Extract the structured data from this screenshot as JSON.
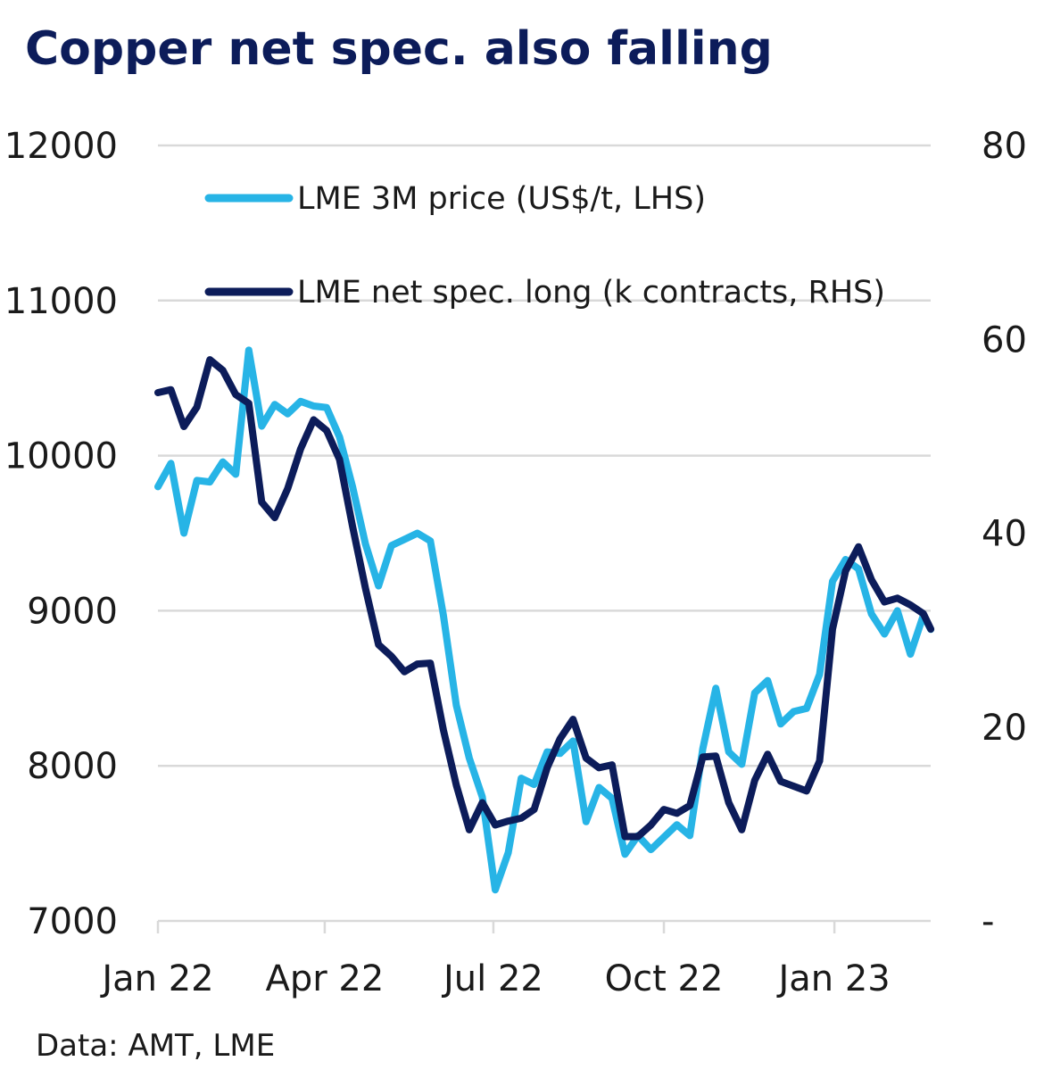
{
  "chart_data": {
    "type": "line",
    "title": "Copper net spec. also falling",
    "source": "Data: AMT, LME",
    "legend_placement": "top-left",
    "grid": true,
    "colors": {
      "title": "#0c1c5a",
      "price": "#27b4e6",
      "netspec": "#0c1c5a",
      "grid": "#d9d9d9"
    },
    "x_ticks": [
      {
        "date": "2022-01-01",
        "label": "Jan 22"
      },
      {
        "date": "2022-04-01",
        "label": "Apr 22"
      },
      {
        "date": "2022-07-01",
        "label": "Jul 22"
      },
      {
        "date": "2022-10-01",
        "label": "Oct 22"
      },
      {
        "date": "2023-01-01",
        "label": "Jan 23"
      }
    ],
    "y_left": {
      "lim": [
        7000,
        12000
      ],
      "ticks": [
        "7000",
        "8000",
        "9000",
        "10000",
        "11000",
        "12000"
      ]
    },
    "y_right": {
      "lim": [
        0,
        80
      ],
      "ticks": [
        "-",
        "20",
        "40",
        "60",
        "80"
      ]
    },
    "dates": [
      "2022-01-01",
      "2022-01-08",
      "2022-01-15",
      "2022-01-22",
      "2022-01-29",
      "2022-02-05",
      "2022-02-12",
      "2022-02-19",
      "2022-02-26",
      "2022-03-05",
      "2022-03-12",
      "2022-03-19",
      "2022-03-26",
      "2022-04-02",
      "2022-04-09",
      "2022-04-16",
      "2022-04-23",
      "2022-04-30",
      "2022-05-07",
      "2022-05-14",
      "2022-05-21",
      "2022-05-28",
      "2022-06-04",
      "2022-06-11",
      "2022-06-18",
      "2022-06-25",
      "2022-07-02",
      "2022-07-09",
      "2022-07-16",
      "2022-07-23",
      "2022-07-30",
      "2022-08-06",
      "2022-08-13",
      "2022-08-20",
      "2022-08-27",
      "2022-09-03",
      "2022-09-10",
      "2022-09-17",
      "2022-09-24",
      "2022-10-01",
      "2022-10-08",
      "2022-10-15",
      "2022-10-22",
      "2022-10-29",
      "2022-11-05",
      "2022-11-12",
      "2022-11-19",
      "2022-11-26",
      "2022-12-03",
      "2022-12-10",
      "2022-12-17",
      "2022-12-24",
      "2022-12-31",
      "2023-01-07",
      "2023-01-14",
      "2023-01-21",
      "2023-01-28",
      "2023-02-04",
      "2023-02-11",
      "2023-02-18",
      "2023-02-22"
    ],
    "series": [
      {
        "name": "LME 3M price (US$/t, LHS)",
        "axis": "left",
        "values": [
          9800,
          9950,
          9500,
          9840,
          9830,
          9960,
          9880,
          10680,
          10190,
          10330,
          10270,
          10350,
          10320,
          10310,
          10120,
          9800,
          9430,
          9160,
          9420,
          9460,
          9500,
          9450,
          8970,
          8390,
          8050,
          7800,
          7200,
          7440,
          7920,
          7880,
          8090,
          8080,
          8160,
          7640,
          7860,
          7790,
          7430,
          7550,
          7460,
          7540,
          7620,
          7550,
          8110,
          8500,
          8090,
          8010,
          8470,
          8550,
          8270,
          8350,
          8370,
          8590,
          9190,
          9330,
          9270,
          8980,
          8850,
          9000,
          8720,
          8970,
          8880
        ]
      },
      {
        "name": "LME net spec. long (k contracts, RHS)",
        "axis": "right",
        "values": [
          54.5,
          54.8,
          51.0,
          53.0,
          57.9,
          56.8,
          54.3,
          53.4,
          43.2,
          41.6,
          44.6,
          48.7,
          51.7,
          50.6,
          47.6,
          40.7,
          34.3,
          28.5,
          27.3,
          25.7,
          26.5,
          26.6,
          19.7,
          14.0,
          9.4,
          12.2,
          9.9,
          10.3,
          10.6,
          11.5,
          15.8,
          18.8,
          20.8,
          16.8,
          15.8,
          16.1,
          8.7,
          8.7,
          9.9,
          11.5,
          11.1,
          11.9,
          16.9,
          17.0,
          12.2,
          9.4,
          14.5,
          17.2,
          14.4,
          13.9,
          13.4,
          16.5,
          30.1,
          36.1,
          38.6,
          35.2,
          32.9,
          33.3,
          32.6,
          31.7,
          30.1
        ]
      }
    ]
  }
}
